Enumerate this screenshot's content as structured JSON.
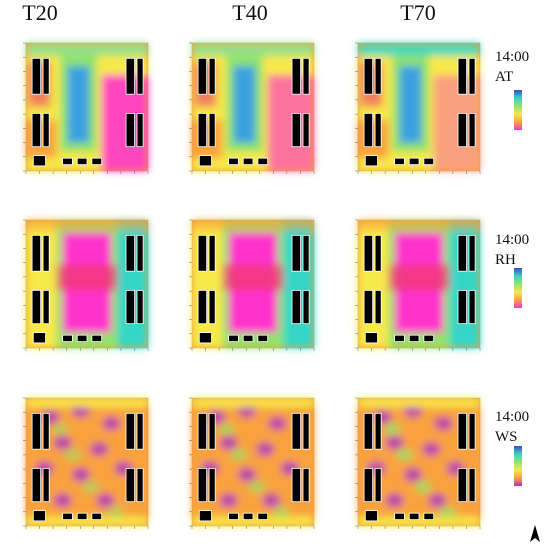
{
  "columns": [
    "T20",
    "T40",
    "T70"
  ],
  "rows": [
    {
      "time": "14:00",
      "variable": "AT"
    },
    {
      "time": "14:00",
      "variable": "RH"
    },
    {
      "time": "14:00",
      "variable": "WS"
    }
  ],
  "colors": {
    "AT_scale": [
      "#3b4cc0",
      "#3aa0e0",
      "#35d6c6",
      "#8fe36a",
      "#f7e94a",
      "#f9a23c",
      "#ee3b6a",
      "#ff33cc"
    ],
    "RH_scale": [
      "#3b4cc0",
      "#3aa0e0",
      "#35d6c6",
      "#8fe36a",
      "#f7e94a",
      "#f9a23c",
      "#ee3b6a",
      "#ff33cc"
    ],
    "WS_scale": [
      "#3b4cc0",
      "#3aa0e0",
      "#35d6c6",
      "#8fe36a",
      "#f7e94a",
      "#f9a23c",
      "#ee3b6a",
      "#b02ec0"
    ],
    "building": "#000000"
  },
  "north_icon": "north-arrow-icon"
}
